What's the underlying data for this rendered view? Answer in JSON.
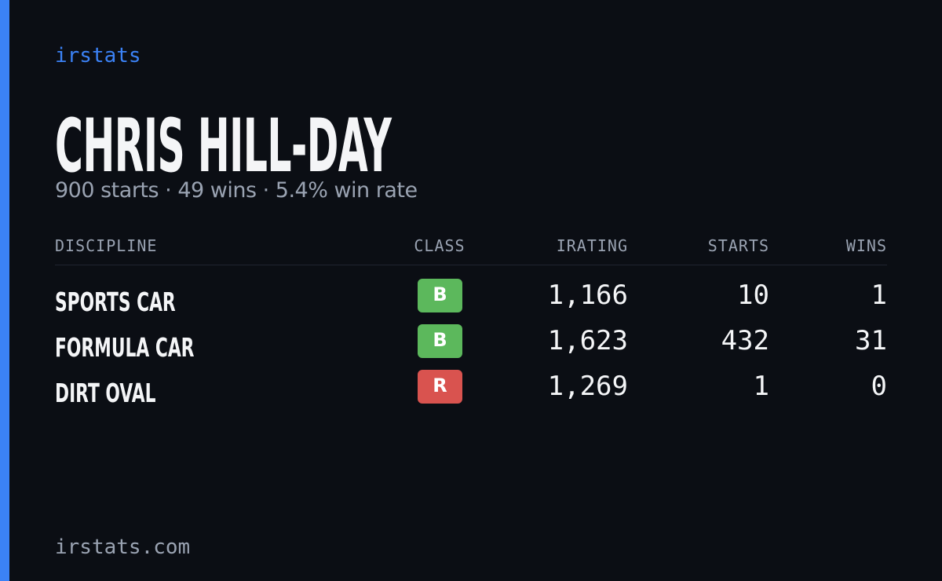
{
  "brand": "irstats",
  "driver": {
    "name": "CHRIS HILL-DAY",
    "summary": "900 starts · 49 wins · 5.4% win rate"
  },
  "table": {
    "headers": [
      "DISCIPLINE",
      "CLASS",
      "IRATING",
      "STARTS",
      "WINS"
    ],
    "rows": [
      {
        "discipline": "SPORTS CAR",
        "class": "B",
        "class_color": "#5cb85c",
        "irating": "1,166",
        "starts": "10",
        "wins": "1"
      },
      {
        "discipline": "FORMULA CAR",
        "class": "B",
        "class_color": "#5cb85c",
        "irating": "1,623",
        "starts": "432",
        "wins": "31"
      },
      {
        "discipline": "DIRT OVAL",
        "class": "R",
        "class_color": "#d9534f",
        "irating": "1,269",
        "starts": "1",
        "wins": "0"
      }
    ]
  },
  "footer": "irstats.com"
}
